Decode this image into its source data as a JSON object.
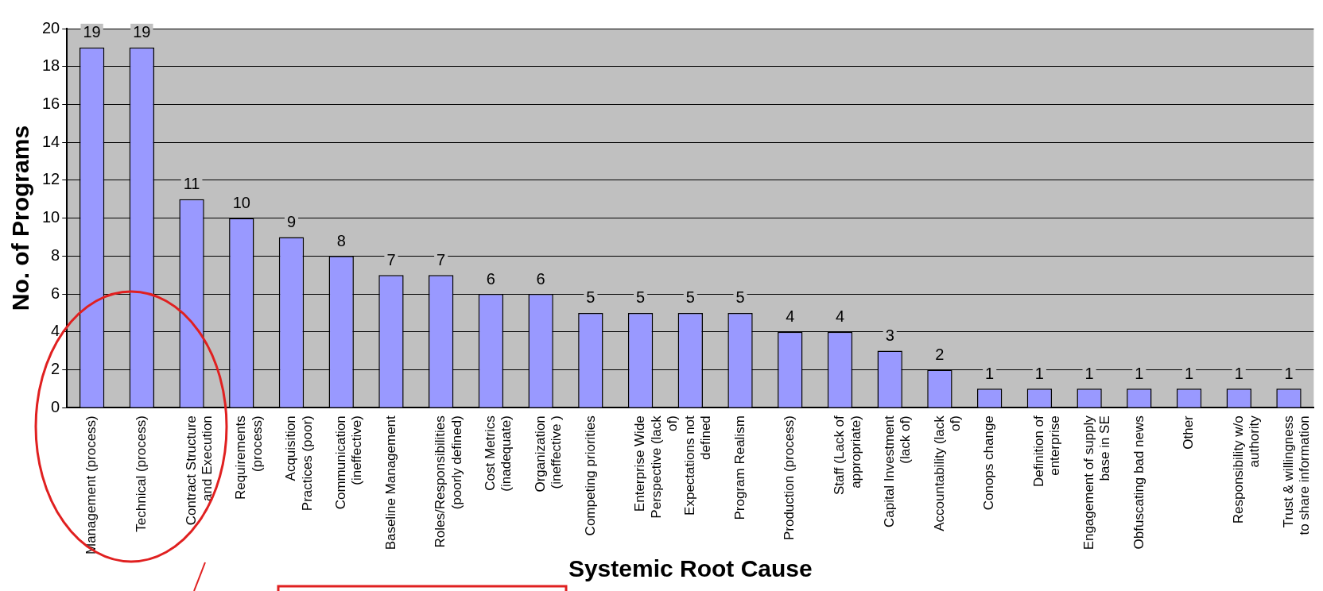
{
  "chart_data": {
    "type": "bar",
    "xlabel": "Systemic Root Cause",
    "ylabel": "No. of Programs",
    "categories": [
      "Management (process)",
      "Technical (process)",
      "Contract Structure and Execution",
      "Requirements (process)",
      "Acquisition Practices (poor)",
      "Communication (ineffective)",
      "Baseline Management",
      "Roles/Responsibilities (poorly defined)",
      "Cost Metrics (inadequate)",
      "Organization (ineffective )",
      "Competing priorities",
      "Enterprise Wide Perspective (lack of)",
      "Expectations not defined",
      "Program Realism",
      "Production (process)",
      "Staff (Lack of appropriate)",
      "Capital Investment (lack of)",
      "Accountability (lack of)",
      "Conops change",
      "Definition of enterprise",
      "Engagement of supply base in SE",
      "Obfuscating bad news",
      "Other",
      "Responsibility w/o authority",
      "Trust & willingness to share information"
    ],
    "values": [
      19,
      19,
      11,
      10,
      9,
      8,
      7,
      7,
      6,
      6,
      5,
      5,
      5,
      5,
      4,
      4,
      3,
      2,
      1,
      1,
      1,
      1,
      1,
      1,
      1
    ],
    "color": "#9999ff",
    "ylim": [
      0,
      20
    ],
    "yticks": [
      0,
      2,
      4,
      6,
      8,
      10,
      12,
      14,
      16,
      18,
      20
    ],
    "grid": "y",
    "data_labels": true,
    "legend": false
  }
}
